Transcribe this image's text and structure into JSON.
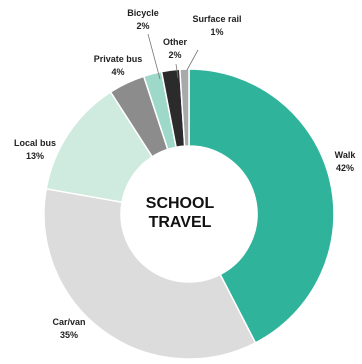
{
  "chart_data": {
    "type": "pie",
    "donut": true,
    "center_title": [
      "SCHOOL",
      "TRAVEL"
    ],
    "slices": [
      {
        "label": "Walk",
        "value": 42,
        "value_label": "42%",
        "color": "#2fb39a"
      },
      {
        "label": "Car/van",
        "value": 35,
        "value_label": "35%",
        "color": "#dcdcdc"
      },
      {
        "label": "Local bus",
        "value": 13,
        "value_label": "13%",
        "color": "#cfeadf"
      },
      {
        "label": "Private bus",
        "value": 4,
        "value_label": "4%",
        "color": "#8c8c8c"
      },
      {
        "label": "Bicycle",
        "value": 2,
        "value_label": "2%",
        "color": "#9ed8c8"
      },
      {
        "label": "Other",
        "value": 2,
        "value_label": "2%",
        "color": "#2b2b2b"
      },
      {
        "label": "Surface rail",
        "value": 1,
        "value_label": "1%",
        "color": "#a9a9a9"
      }
    ]
  }
}
